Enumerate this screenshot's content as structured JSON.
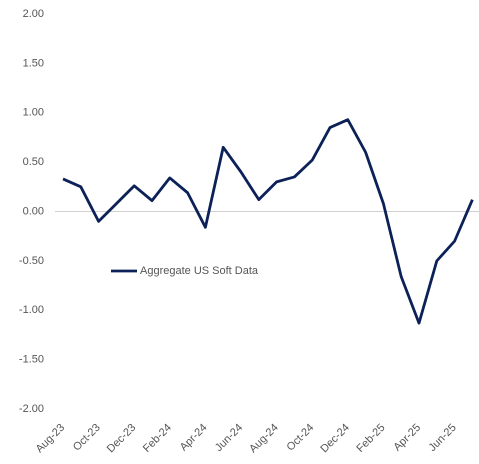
{
  "chart_data": {
    "type": "line",
    "categories": [
      "Aug-23",
      null,
      "Oct-23",
      null,
      "Dec-23",
      null,
      "Feb-24",
      null,
      "Apr-24",
      null,
      "Jun-24",
      null,
      "Aug-24",
      null,
      "Oct-24",
      null,
      "Dec-24",
      null,
      "Feb-25",
      null,
      "Apr-25",
      null,
      "Jun-25",
      null
    ],
    "series": [
      {
        "name": "Aggregate US Soft Data",
        "color": "#0b2157",
        "values": [
          0.33,
          0.25,
          -0.1,
          0.08,
          0.26,
          0.11,
          0.34,
          0.19,
          -0.16,
          0.65,
          0.4,
          0.12,
          0.3,
          0.35,
          0.52,
          0.85,
          0.93,
          0.6,
          0.08,
          -0.66,
          -1.13,
          -0.5,
          -0.3,
          0.12
        ]
      }
    ],
    "ylim": [
      -2,
      2
    ],
    "yticks": [
      {
        "value": -2,
        "label": "-2.00"
      },
      {
        "value": -1.5,
        "label": "-1.50"
      },
      {
        "value": -1,
        "label": "-1.00"
      },
      {
        "value": -0.5,
        "label": "-0.50"
      },
      {
        "value": 0,
        "label": "0.00"
      },
      {
        "value": 0.5,
        "label": "0.50"
      },
      {
        "value": 1,
        "label": "1.00"
      },
      {
        "value": 1.5,
        "label": "1.50"
      },
      {
        "value": 2,
        "label": "2.00"
      }
    ],
    "legend": "left"
  }
}
